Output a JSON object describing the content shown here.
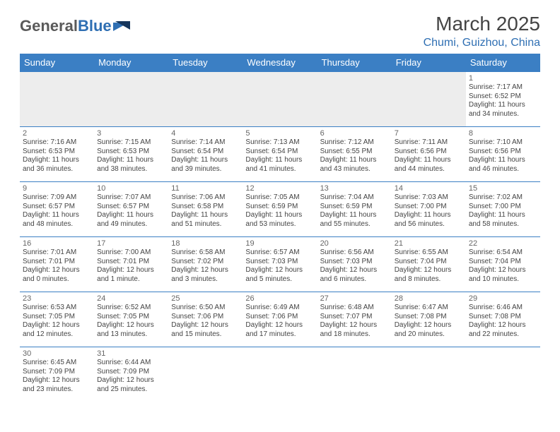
{
  "brand": {
    "part1": "General",
    "part2": "Blue"
  },
  "title": "March 2025",
  "location": "Chumi, Guizhou, China",
  "colors": {
    "header_bg": "#3b7fc4",
    "header_text": "#ffffff",
    "cell_border": "#3b7fc4",
    "empty_bg": "#ededed",
    "brand_gray": "#5a5a5a",
    "brand_blue": "#2f6fb3",
    "text": "#444444"
  },
  "weekdays": [
    "Sunday",
    "Monday",
    "Tuesday",
    "Wednesday",
    "Thursday",
    "Friday",
    "Saturday"
  ],
  "weeks": [
    [
      null,
      null,
      null,
      null,
      null,
      null,
      {
        "n": "1",
        "sunrise": "7:17 AM",
        "sunset": "6:52 PM",
        "daylight": "11 hours and 34 minutes."
      }
    ],
    [
      {
        "n": "2",
        "sunrise": "7:16 AM",
        "sunset": "6:53 PM",
        "daylight": "11 hours and 36 minutes."
      },
      {
        "n": "3",
        "sunrise": "7:15 AM",
        "sunset": "6:53 PM",
        "daylight": "11 hours and 38 minutes."
      },
      {
        "n": "4",
        "sunrise": "7:14 AM",
        "sunset": "6:54 PM",
        "daylight": "11 hours and 39 minutes."
      },
      {
        "n": "5",
        "sunrise": "7:13 AM",
        "sunset": "6:54 PM",
        "daylight": "11 hours and 41 minutes."
      },
      {
        "n": "6",
        "sunrise": "7:12 AM",
        "sunset": "6:55 PM",
        "daylight": "11 hours and 43 minutes."
      },
      {
        "n": "7",
        "sunrise": "7:11 AM",
        "sunset": "6:56 PM",
        "daylight": "11 hours and 44 minutes."
      },
      {
        "n": "8",
        "sunrise": "7:10 AM",
        "sunset": "6:56 PM",
        "daylight": "11 hours and 46 minutes."
      }
    ],
    [
      {
        "n": "9",
        "sunrise": "7:09 AM",
        "sunset": "6:57 PM",
        "daylight": "11 hours and 48 minutes."
      },
      {
        "n": "10",
        "sunrise": "7:07 AM",
        "sunset": "6:57 PM",
        "daylight": "11 hours and 49 minutes."
      },
      {
        "n": "11",
        "sunrise": "7:06 AM",
        "sunset": "6:58 PM",
        "daylight": "11 hours and 51 minutes."
      },
      {
        "n": "12",
        "sunrise": "7:05 AM",
        "sunset": "6:59 PM",
        "daylight": "11 hours and 53 minutes."
      },
      {
        "n": "13",
        "sunrise": "7:04 AM",
        "sunset": "6:59 PM",
        "daylight": "11 hours and 55 minutes."
      },
      {
        "n": "14",
        "sunrise": "7:03 AM",
        "sunset": "7:00 PM",
        "daylight": "11 hours and 56 minutes."
      },
      {
        "n": "15",
        "sunrise": "7:02 AM",
        "sunset": "7:00 PM",
        "daylight": "11 hours and 58 minutes."
      }
    ],
    [
      {
        "n": "16",
        "sunrise": "7:01 AM",
        "sunset": "7:01 PM",
        "daylight": "12 hours and 0 minutes."
      },
      {
        "n": "17",
        "sunrise": "7:00 AM",
        "sunset": "7:01 PM",
        "daylight": "12 hours and 1 minute."
      },
      {
        "n": "18",
        "sunrise": "6:58 AM",
        "sunset": "7:02 PM",
        "daylight": "12 hours and 3 minutes."
      },
      {
        "n": "19",
        "sunrise": "6:57 AM",
        "sunset": "7:03 PM",
        "daylight": "12 hours and 5 minutes."
      },
      {
        "n": "20",
        "sunrise": "6:56 AM",
        "sunset": "7:03 PM",
        "daylight": "12 hours and 6 minutes."
      },
      {
        "n": "21",
        "sunrise": "6:55 AM",
        "sunset": "7:04 PM",
        "daylight": "12 hours and 8 minutes."
      },
      {
        "n": "22",
        "sunrise": "6:54 AM",
        "sunset": "7:04 PM",
        "daylight": "12 hours and 10 minutes."
      }
    ],
    [
      {
        "n": "23",
        "sunrise": "6:53 AM",
        "sunset": "7:05 PM",
        "daylight": "12 hours and 12 minutes."
      },
      {
        "n": "24",
        "sunrise": "6:52 AM",
        "sunset": "7:05 PM",
        "daylight": "12 hours and 13 minutes."
      },
      {
        "n": "25",
        "sunrise": "6:50 AM",
        "sunset": "7:06 PM",
        "daylight": "12 hours and 15 minutes."
      },
      {
        "n": "26",
        "sunrise": "6:49 AM",
        "sunset": "7:06 PM",
        "daylight": "12 hours and 17 minutes."
      },
      {
        "n": "27",
        "sunrise": "6:48 AM",
        "sunset": "7:07 PM",
        "daylight": "12 hours and 18 minutes."
      },
      {
        "n": "28",
        "sunrise": "6:47 AM",
        "sunset": "7:08 PM",
        "daylight": "12 hours and 20 minutes."
      },
      {
        "n": "29",
        "sunrise": "6:46 AM",
        "sunset": "7:08 PM",
        "daylight": "12 hours and 22 minutes."
      }
    ],
    [
      {
        "n": "30",
        "sunrise": "6:45 AM",
        "sunset": "7:09 PM",
        "daylight": "12 hours and 23 minutes."
      },
      {
        "n": "31",
        "sunrise": "6:44 AM",
        "sunset": "7:09 PM",
        "daylight": "12 hours and 25 minutes."
      },
      null,
      null,
      null,
      null,
      null
    ]
  ],
  "labels": {
    "sunrise": "Sunrise:",
    "sunset": "Sunset:",
    "daylight": "Daylight:"
  }
}
